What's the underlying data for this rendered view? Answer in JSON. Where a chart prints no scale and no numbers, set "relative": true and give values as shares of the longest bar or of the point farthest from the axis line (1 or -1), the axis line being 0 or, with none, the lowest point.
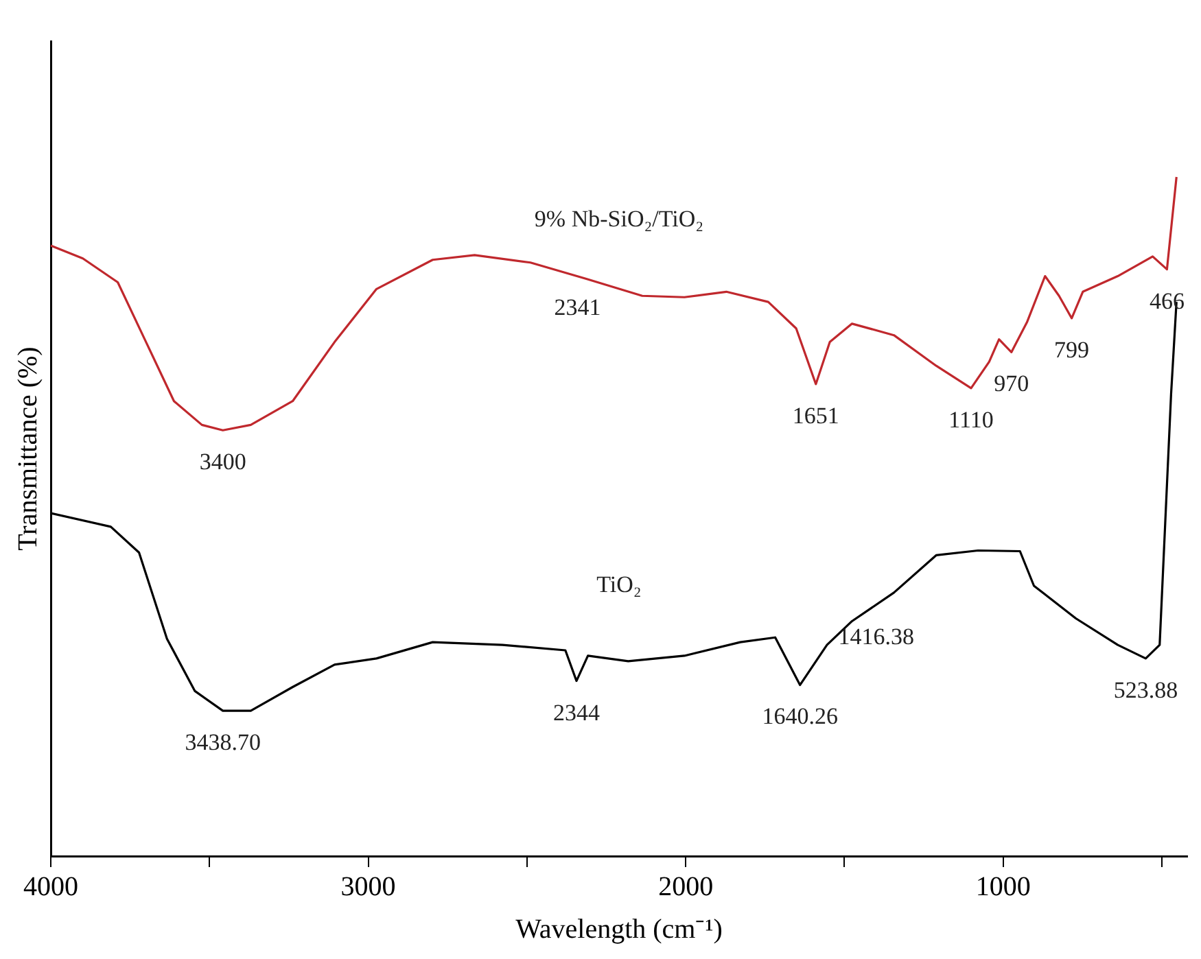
{
  "chart_data": {
    "type": "line",
    "relative": true,
    "xlabel": "Wavelength (cm⁻¹)",
    "ylabel": "Transmittance (%)",
    "xlim": [
      4000,
      420
    ],
    "xticks": [
      4000,
      {
        "value": 3500,
        "label": null
      },
      3000,
      {
        "value": 2500,
        "label": null
      },
      2000,
      {
        "value": 1500,
        "label": null
      },
      1000,
      {
        "value": 500,
        "label": null
      }
    ],
    "grid": false,
    "legend": false,
    "marker": "none",
    "line_style": "solid",
    "series": [
      {
        "name": "9% Nb-SiO₂/TiO₂",
        "color": "#c0282d",
        "x": [
          4000,
          3899,
          3789,
          3700,
          3612,
          3524,
          3458,
          3370,
          3238,
          3106,
          2974,
          2797,
          2665,
          2489,
          2313,
          2137,
          2004,
          1872,
          1740,
          1652,
          1590,
          1546,
          1476,
          1344,
          1211,
          1101,
          1044,
          1013,
          974,
          925,
          868,
          824,
          784,
          749,
          639,
          529,
          484,
          454
        ],
        "values": [
          0.899,
          0.88,
          0.845,
          0.757,
          0.67,
          0.635,
          0.627,
          0.635,
          0.67,
          0.757,
          0.835,
          0.878,
          0.885,
          0.874,
          0.85,
          0.825,
          0.823,
          0.831,
          0.816,
          0.777,
          0.695,
          0.757,
          0.784,
          0.767,
          0.722,
          0.689,
          0.728,
          0.761,
          0.742,
          0.786,
          0.854,
          0.825,
          0.792,
          0.831,
          0.854,
          0.883,
          0.864,
          1.0
        ]
      },
      {
        "name": "TiO₂",
        "color": "#000000",
        "x": [
          4000,
          3811,
          3722,
          3634,
          3546,
          3458,
          3370,
          3238,
          3106,
          2974,
          2797,
          2577,
          2379,
          2344,
          2308,
          2181,
          2004,
          1828,
          1718,
          1640,
          1555,
          1476,
          1344,
          1211,
          1079,
          947,
          903,
          771,
          639,
          551,
          507,
          471,
          454
        ],
        "values": [
          0.505,
          0.485,
          0.447,
          0.32,
          0.243,
          0.214,
          0.214,
          0.249,
          0.282,
          0.291,
          0.315,
          0.311,
          0.303,
          0.258,
          0.295,
          0.287,
          0.295,
          0.315,
          0.322,
          0.252,
          0.311,
          0.346,
          0.388,
          0.443,
          0.45,
          0.449,
          0.398,
          0.35,
          0.311,
          0.291,
          0.311,
          0.68,
          0.816
        ]
      }
    ],
    "annotations": [
      {
        "text": "3400",
        "x": 3458,
        "y": 0.627
      },
      {
        "text": "2341",
        "x": 2341,
        "y": 0.854
      },
      {
        "text": "1651",
        "x": 1590,
        "y": 0.695
      },
      {
        "text": "1110",
        "x": 1101,
        "y": 0.689
      },
      {
        "text": "970",
        "x": 974,
        "y": 0.742
      },
      {
        "text": "799",
        "x": 784,
        "y": 0.792
      },
      {
        "text": "466",
        "x": 484,
        "y": 0.864
      },
      {
        "text": "2344",
        "x": 2344,
        "y": 0.258
      },
      {
        "text": "1640.26",
        "x": 1640,
        "y": 0.252
      },
      {
        "text": "1416.38",
        "x": 1400,
        "y": 0.37
      },
      {
        "text": "523.88",
        "x": 551,
        "y": 0.291
      },
      {
        "text": "3438.70",
        "x": 3458,
        "y": 0.214
      }
    ]
  }
}
